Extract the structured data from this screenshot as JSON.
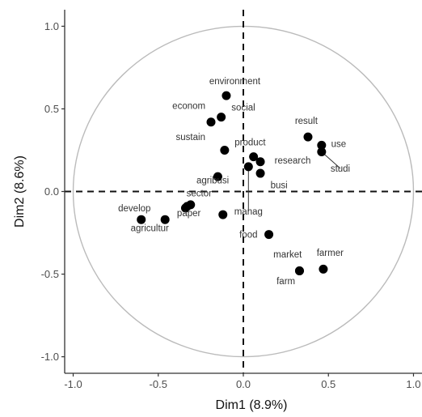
{
  "chart_data": {
    "type": "scatter",
    "title": "",
    "xlabel": "Dim1 (8.9%)",
    "ylabel": "Dim2 (8.6%)",
    "xlim": [
      -1.05,
      1.05
    ],
    "ylim": [
      -1.1,
      1.1
    ],
    "x_ticks": [
      -1.0,
      -0.5,
      0.0,
      0.5,
      1.0
    ],
    "x_tick_labels": [
      "-1.0",
      "-0.5",
      "0.0",
      "0.5",
      "1.0"
    ],
    "y_ticks": [
      -1.0,
      -0.5,
      0.0,
      0.5,
      1.0
    ],
    "y_tick_labels": [
      "-1.0",
      "-0.5",
      "0.0",
      "0.5",
      "1.0"
    ],
    "grid": false,
    "reference_lines": {
      "x": 0.0,
      "y": 0.0,
      "style": "dashed"
    },
    "unit_circle": true,
    "point_color": "#000000",
    "circle_color": "#bbbbbb",
    "points": [
      {
        "label": "environment",
        "x": -0.1,
        "y": 0.58,
        "dx": 0.05,
        "dy": 0.07
      },
      {
        "label": "social",
        "x": -0.13,
        "y": 0.45,
        "dx": 0.13,
        "dy": 0.04
      },
      {
        "label": "econom",
        "x": -0.19,
        "y": 0.42,
        "dx": -0.13,
        "dy": 0.08
      },
      {
        "label": "sustain",
        "x": -0.11,
        "y": 0.25,
        "dx": -0.2,
        "dy": 0.06
      },
      {
        "label": "product",
        "x": 0.06,
        "y": 0.21,
        "dx": -0.02,
        "dy": 0.07
      },
      {
        "label": "research",
        "x": 0.1,
        "y": 0.18,
        "dx": 0.19,
        "dy": -0.01
      },
      {
        "label": "result",
        "x": 0.38,
        "y": 0.33,
        "dx": -0.01,
        "dy": 0.08
      },
      {
        "label": "use",
        "x": 0.46,
        "y": 0.28,
        "dx": 0.1,
        "dy": -0.01
      },
      {
        "label": "studi",
        "x": 0.46,
        "y": 0.24,
        "dx": 0.11,
        "dy": -0.12,
        "leader": true
      },
      {
        "label": "agribusi",
        "x": -0.15,
        "y": 0.09,
        "dx": -0.03,
        "dy": -0.04
      },
      {
        "label": "busi",
        "x": 0.1,
        "y": 0.11,
        "dx": 0.11,
        "dy": -0.09
      },
      {
        "label": "manag",
        "x": 0.03,
        "y": 0.15,
        "dx": 0.0,
        "dy": -0.29,
        "leader": true
      },
      {
        "label": "sector",
        "x": -0.31,
        "y": -0.08,
        "dx": 0.05,
        "dy": 0.05
      },
      {
        "label": "paper",
        "x": -0.34,
        "y": -0.1,
        "dx": 0.02,
        "dy": -0.05
      },
      {
        "label": "develop",
        "x": -0.6,
        "y": -0.17,
        "dx": -0.04,
        "dy": 0.05
      },
      {
        "label": "agricultur",
        "x": -0.46,
        "y": -0.17,
        "dx": -0.09,
        "dy": -0.07
      },
      {
        "label": "food",
        "x": 0.15,
        "y": -0.26,
        "dx": -0.12,
        "dy": -0.02
      },
      {
        "label": "market",
        "x": 0.33,
        "y": -0.48,
        "dx": -0.07,
        "dy": 0.08
      },
      {
        "label": "farmer",
        "x": 0.47,
        "y": -0.47,
        "dx": 0.04,
        "dy": 0.08
      },
      {
        "label": "farm",
        "x": 0.33,
        "y": -0.48,
        "dx": -0.08,
        "dy": -0.08
      },
      {
        "label": "",
        "x": -0.12,
        "y": -0.14,
        "dx": 0,
        "dy": 0
      },
      {
        "label": "",
        "x": -0.33,
        "y": -0.09,
        "dx": 0,
        "dy": 0
      }
    ]
  }
}
